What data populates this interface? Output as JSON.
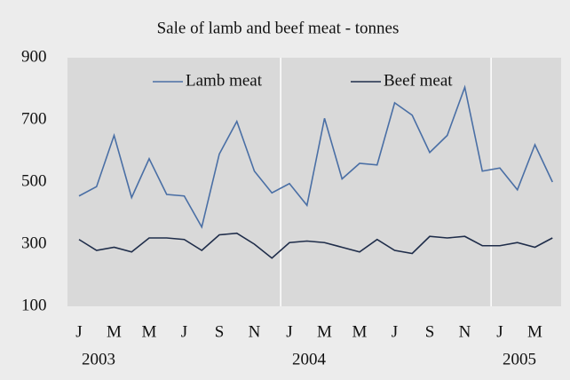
{
  "chart_data": {
    "type": "line",
    "title": "Sale of lamb and beef meat - tonnes",
    "categories": [
      "J",
      null,
      "M",
      null,
      "M",
      null,
      "J",
      null,
      "S",
      null,
      "N",
      null,
      "J",
      null,
      "M",
      null,
      "M",
      null,
      "J",
      null,
      "S",
      null,
      "N",
      null,
      "J",
      null,
      "M",
      null
    ],
    "year_labels": [
      "2003",
      "2004",
      "2005"
    ],
    "series": [
      {
        "name": "Lamb meat",
        "color": "#4a6fa5",
        "values": [
          455,
          485,
          650,
          450,
          575,
          460,
          455,
          355,
          590,
          695,
          535,
          465,
          495,
          425,
          705,
          510,
          560,
          555,
          755,
          715,
          595,
          650,
          805,
          535,
          545,
          475,
          620,
          500
        ]
      },
      {
        "name": "Beef meat",
        "color": "#1f2d4a",
        "values": [
          315,
          280,
          290,
          275,
          320,
          320,
          315,
          280,
          330,
          335,
          300,
          255,
          305,
          310,
          305,
          290,
          275,
          315,
          280,
          270,
          325,
          320,
          325,
          295,
          295,
          305,
          290,
          320
        ]
      }
    ],
    "ylim": [
      100,
      900
    ],
    "yticks": [
      100,
      300,
      500,
      700,
      900
    ],
    "grid": false,
    "legend": "top"
  }
}
